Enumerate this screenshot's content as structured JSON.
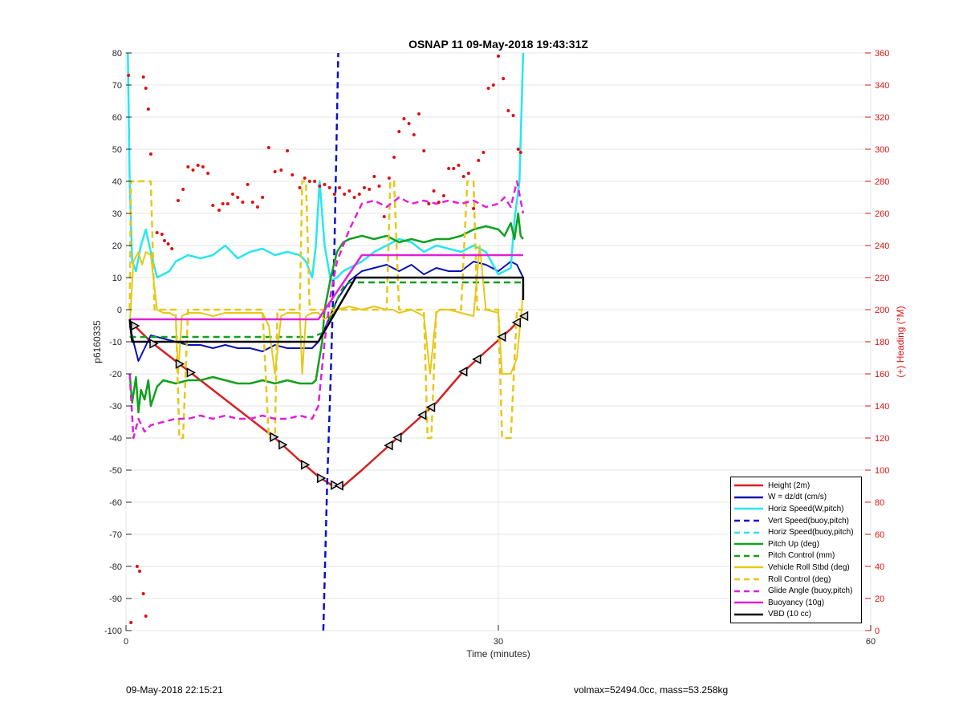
{
  "footer": {
    "date": "09-May-2018 22:15:21",
    "mass_info": "volmax=52494.0cc, mass=53.258kg"
  },
  "chart_data": {
    "type": "line",
    "title": "OSNAP 11 09-May-2018 19:43:31Z",
    "xlabel": "Time (minutes)",
    "ylabel": "p6160335",
    "y2label": "(+) Heading (°M)",
    "xlim": [
      0,
      60
    ],
    "ylim": [
      -100,
      80
    ],
    "y2lim": [
      0,
      360
    ],
    "xticks": [
      "0",
      "30",
      "60"
    ],
    "yticks": [
      "80",
      "70",
      "60",
      "50",
      "40",
      "30",
      "20",
      "10",
      "0",
      "-10",
      "-20",
      "-30",
      "-40",
      "-50",
      "-60",
      "-70",
      "-80",
      "-90",
      "-100"
    ],
    "y2ticks": [
      "360",
      "340",
      "320",
      "300",
      "280",
      "260",
      "240",
      "220",
      "200",
      "180",
      "160",
      "140",
      "120",
      "100",
      "80",
      "60",
      "40",
      "20",
      "0"
    ],
    "grid": true,
    "legend_position": "bottom-right",
    "series": [
      {
        "name": "Height (2m)",
        "color": "#d62020",
        "dash": "solid",
        "width": 2.5,
        "x": [
          0.3,
          2,
          4,
          6,
          8,
          10,
          12,
          14,
          15.5,
          16.5,
          17.5,
          19,
          21,
          23,
          25,
          27,
          29,
          31,
          32
        ],
        "y": [
          -3.5,
          -10,
          -16,
          -22,
          -28,
          -34,
          -40,
          -47,
          -52,
          -54.5,
          -55,
          -50,
          -43,
          -36,
          -29,
          -20,
          -13,
          -6,
          -2
        ]
      },
      {
        "name": "W = dz/dt (cm/s)",
        "color": "#0a10b4",
        "dash": "solid",
        "width": 2,
        "x": [
          0.3,
          0.6,
          1,
          1.5,
          2,
          3,
          4,
          5,
          6,
          7,
          8,
          9,
          10,
          11,
          12,
          13,
          14,
          15,
          15.5,
          16,
          17,
          18,
          19,
          20,
          21,
          22,
          23,
          24,
          25,
          26,
          27,
          28,
          29,
          30,
          31,
          31.5,
          32
        ],
        "y": [
          -5,
          -10,
          -16,
          -12,
          -8,
          -9,
          -10,
          -11,
          -11,
          -12,
          -11,
          -12,
          -12,
          -13,
          -11,
          -12,
          -12,
          -12,
          -10,
          -6,
          3,
          9,
          12,
          13,
          14,
          12,
          14,
          11,
          13,
          12,
          12,
          15,
          14,
          12,
          15,
          14,
          10
        ]
      },
      {
        "name": "Horiz Speed(W,pitch)",
        "color": "#28e6f0",
        "dash": "solid",
        "width": 2.5,
        "x": [
          0.15,
          0.3,
          0.5,
          0.8,
          1.2,
          1.6,
          2,
          2.5,
          3,
          3.5,
          4,
          5,
          6,
          7,
          8,
          8.5,
          9,
          10,
          11,
          12,
          13,
          14,
          14.5,
          15,
          15.3,
          15.6,
          16,
          16.5,
          17,
          17.5,
          18,
          19,
          20,
          21,
          22,
          23,
          24,
          25,
          26,
          27,
          28,
          29,
          30,
          30.5,
          31,
          31.3,
          31.7,
          32
        ],
        "y": [
          80,
          40,
          15,
          12,
          20,
          25,
          18,
          10,
          11,
          12,
          15,
          17,
          16,
          17,
          20,
          18,
          16,
          18,
          19,
          17,
          18,
          17,
          15,
          10,
          20,
          40,
          20,
          9,
          10,
          12,
          13,
          15,
          18,
          20,
          22,
          21,
          18,
          20,
          19,
          18,
          20,
          18,
          11,
          12,
          13,
          28,
          40,
          80
        ]
      },
      {
        "name": "Vert Speed(buoy,pitch)",
        "color": "#0a10c8",
        "dash": "8,5",
        "width": 2.5,
        "x": [
          15.9,
          16.2,
          16.5,
          16.8,
          17.1
        ],
        "y": [
          -100,
          -55,
          -20,
          20,
          80
        ]
      },
      {
        "name": "Horiz Speed(buoy,pitch)",
        "color": "#28e6f0",
        "dash": "8,5",
        "width": 2,
        "x": [],
        "y": []
      },
      {
        "name": "Pitch Up (deg)",
        "color": "#12a01e",
        "dash": "solid",
        "width": 2.5,
        "x": [
          0.3,
          0.5,
          0.8,
          1,
          1.2,
          1.5,
          1.8,
          2,
          2.5,
          3,
          4,
          5,
          6,
          7,
          8,
          9,
          10,
          11,
          12,
          13,
          14,
          15,
          15.3,
          15.8,
          16,
          16.5,
          17,
          17.5,
          18,
          19,
          20,
          21,
          22,
          23,
          24,
          25,
          26,
          27,
          28,
          29,
          30,
          30.5,
          31,
          31.3,
          31.6,
          31.8,
          32
        ],
        "y": [
          -20,
          -29,
          -21,
          -32,
          -25,
          -28,
          -22,
          -30,
          -24,
          -22,
          -23,
          -22,
          -22,
          -21,
          -22,
          -23,
          -23,
          -22,
          -23,
          -22,
          -23,
          -23,
          -22,
          -10,
          0,
          10,
          18,
          21,
          22,
          23,
          22,
          23,
          21,
          22,
          21,
          22,
          22,
          23,
          25,
          26,
          25,
          23,
          27,
          22,
          30,
          23,
          22
        ]
      },
      {
        "name": "Pitch Control (mm)",
        "color": "#12a01e",
        "dash": "8,5",
        "width": 2.5,
        "x": [
          0.3,
          2,
          15,
          16,
          16.5,
          17,
          17.5,
          18,
          32
        ],
        "y": [
          -8.5,
          -8.5,
          -8.5,
          -7,
          -2,
          3,
          7,
          8.5,
          8.5
        ]
      },
      {
        "name": "Vehicle Roll Stbd (deg)",
        "color": "#e6c818",
        "dash": "solid",
        "width": 2,
        "x": [
          0.3,
          0.6,
          1,
          1.3,
          1.6,
          2,
          2.5,
          3,
          3.5,
          4,
          4.2,
          4.5,
          5,
          6,
          7,
          8,
          9,
          10,
          11,
          11.5,
          12,
          12.5,
          13,
          14,
          14.2,
          14.5,
          15,
          15.5,
          16,
          17,
          18,
          19,
          20,
          21,
          21.5,
          22,
          23,
          24,
          24.5,
          25,
          25.3,
          26,
          27,
          28,
          28.5,
          29,
          30,
          30.3,
          31,
          31.5,
          32
        ],
        "y": [
          -5,
          15,
          18,
          14,
          18,
          17,
          0,
          -1,
          -1,
          -2,
          -20,
          -2,
          -1,
          -1,
          -2,
          -1,
          -1,
          -1,
          -1,
          -5,
          -20,
          -2,
          -1,
          -1,
          -20,
          -2,
          -1,
          -1,
          -3,
          0,
          1,
          0,
          1,
          0,
          0,
          -1,
          0,
          -2,
          -20,
          -1,
          0,
          0,
          -1,
          -2,
          20,
          0,
          -1,
          -20,
          -20,
          -15,
          5
        ]
      },
      {
        "name": "Roll Control (deg)",
        "color": "#e6c818",
        "dash": "8,5",
        "width": 2.5,
        "x": [
          0.3,
          0.4,
          0.5,
          1,
          1.2,
          1.5,
          2,
          2.3,
          2.6,
          3,
          4,
          4.3,
          4.6,
          5,
          6,
          7,
          8,
          9,
          10,
          11,
          11.5,
          12,
          12.2,
          12.5,
          13,
          14,
          14.2,
          14.5,
          14.8,
          15,
          16,
          17,
          18,
          19,
          20,
          21,
          21.3,
          21.6,
          22,
          23,
          24,
          24.3,
          24.6,
          25,
          26,
          27,
          27.5,
          28,
          28.3,
          28.6,
          29,
          30,
          30.3,
          30.6,
          31,
          31.5,
          32
        ],
        "y": [
          0,
          40,
          40,
          40,
          40,
          40,
          40,
          0,
          0,
          0,
          0,
          -40,
          -40,
          0,
          0,
          0,
          0,
          0,
          0,
          0,
          -40,
          -40,
          0,
          0,
          0,
          0,
          40,
          40,
          0,
          0,
          0,
          0,
          0,
          0,
          0,
          0,
          40,
          40,
          0,
          0,
          0,
          -40,
          -40,
          0,
          0,
          0,
          40,
          40,
          0,
          0,
          0,
          0,
          -40,
          -40,
          -40,
          0,
          0
        ]
      },
      {
        "name": "Glide Angle (buoy,pitch)",
        "color": "#e020d8",
        "dash": "8,5",
        "width": 2.5,
        "x": [
          0.3,
          0.6,
          1,
          1.5,
          2,
          3,
          4,
          5,
          6,
          7,
          8,
          9,
          10,
          11,
          12,
          13,
          14,
          15,
          15.5,
          16,
          16.5,
          17,
          18,
          19,
          20,
          21,
          22,
          23,
          24,
          25,
          26,
          27,
          28,
          29,
          30,
          30.5,
          31,
          31.5,
          32
        ],
        "y": [
          -20,
          -40,
          -34,
          -38,
          -36,
          -35,
          -34,
          -34,
          -33,
          -34,
          -33,
          -34,
          -34,
          -33,
          -34,
          -34,
          -33,
          -34,
          -30,
          -10,
          5,
          15,
          25,
          33,
          34,
          32,
          35,
          33,
          34,
          33,
          34,
          33,
          34,
          32,
          33,
          35,
          32,
          40,
          30
        ]
      },
      {
        "name": "Buoyancy (10g)",
        "color": "#e020d8",
        "dash": "solid",
        "width": 2.5,
        "x": [
          0.3,
          15.5,
          19,
          32
        ],
        "y": [
          -3,
          -3,
          17,
          17
        ]
      },
      {
        "name": "VBD (10 cc)",
        "color": "#000000",
        "dash": "solid",
        "width": 2.5,
        "x": [
          0.3,
          0.5,
          15.5,
          18.5,
          32,
          32
        ],
        "y": [
          -3,
          -10,
          -10,
          10,
          10,
          3
        ]
      }
    ],
    "heading_points": {
      "color": "#dd1111",
      "axis": "right",
      "x": [
        0.2,
        1.4,
        1.6,
        1.8,
        2,
        0.9,
        1.1,
        1.4,
        1.6,
        0.4,
        2.5,
        2.9,
        3.1,
        3.4,
        3.7,
        4.2,
        4.6,
        5,
        5.4,
        5.8,
        6.2,
        6.6,
        7,
        7.5,
        7.8,
        8.2,
        8.6,
        9,
        9.4,
        9.8,
        10.2,
        10.6,
        11,
        11.5,
        12,
        12.5,
        13,
        13.4,
        14,
        14.4,
        14.8,
        15.2,
        15.6,
        16,
        16.4,
        16.8,
        17.2,
        17.6,
        18,
        18.4,
        18.8,
        19.2,
        19.6,
        20,
        20.4,
        20.8,
        21.2,
        21.6,
        22,
        22.4,
        22.8,
        23.2,
        23.6,
        24,
        24.4,
        24.8,
        25.2,
        25.6,
        26,
        26.4,
        26.8,
        27.2,
        27.6,
        28,
        28.4,
        28.8,
        29.2,
        29.6,
        30,
        30.4,
        30.8,
        31.2,
        31.6,
        31.8
      ],
      "y": [
        346,
        345,
        338,
        325,
        297,
        40,
        37,
        23,
        9,
        5,
        248,
        247,
        243,
        241,
        238,
        268,
        275,
        289,
        287,
        290,
        289,
        285,
        265,
        262,
        266,
        266,
        272,
        270,
        267,
        278,
        267,
        264,
        270,
        301,
        286,
        287,
        299,
        284,
        276,
        282,
        280,
        280,
        277,
        278,
        276,
        272,
        276,
        272,
        274,
        270,
        272,
        276,
        275,
        283,
        277,
        258,
        282,
        295,
        311,
        319,
        316,
        309,
        322,
        299,
        266,
        274,
        267,
        271,
        288,
        288,
        290,
        283,
        285,
        263,
        293,
        298,
        338,
        340,
        358,
        344,
        324,
        321,
        300,
        298
      ]
    }
  }
}
